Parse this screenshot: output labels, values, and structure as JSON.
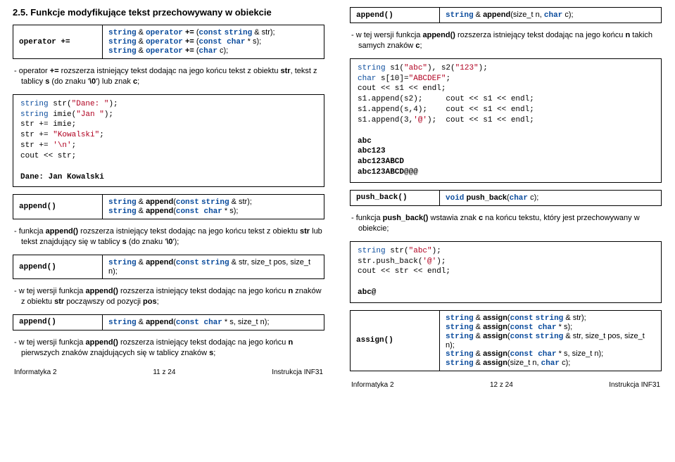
{
  "left": {
    "sec_title": "2.5. Funkcje modyfikujące tekst przechowywany w obiekcie",
    "op_plus_eq": {
      "label": "operator +=",
      "sig1": "string & operator += (const string & str);",
      "sig2": "string & operator += (const char * s);",
      "sig3": "string & operator += (char c);"
    },
    "op_desc": "operator += rozszerza istniejący tekst dodając na jego końcu tekst z obiektu str, tekst z tablicy s (do znaku '\\0') lub znak c;",
    "code1": "string str(\"Dane: \");\nstring imie(\"Jan \");\nstr += imie;\nstr += \"Kowalski\";\nstr += '\\n';\ncout << str;\n\nDane: Jan Kowalski",
    "append1": {
      "label": "append()",
      "sig1": "string & append(const string & str);",
      "sig2": "string & append(const char * s);"
    },
    "append1_desc": "funkcja append() rozszerza istniejący tekst dodając na jego końcu tekst z obiektu str lub tekst znajdujący się w tablicy s (do znaku '\\0');",
    "append2": {
      "label": "append()",
      "sig": "string & append(const string & str, size_t pos, size_t n);"
    },
    "append2_desc": "w tej wersji funkcja append() rozszerza istniejący tekst dodając na jego końcu n znaków z obiektu str począwszy od pozycji pos;",
    "append3": {
      "label": "append()",
      "sig": "string & append(const char * s, size_t n);"
    },
    "append3_desc": "w tej wersji funkcja append() rozszerza istniejący tekst dodając na jego końcu n pierwszych znaków znajdujących się w tablicy znaków s;",
    "footer_l": "Informatyka 2",
    "footer_c": "11 z 24",
    "footer_r": "Instrukcja INF31"
  },
  "right": {
    "append4": {
      "label": "append()",
      "sig": "string & append(size_t n, char c);"
    },
    "append4_desc": "w tej wersji funkcja append() rozszerza istniejący tekst dodając na jego końcu n takich samych znaków c;",
    "code2": "string s1(\"abc\"), s2(\"123\");\nchar s[10]=\"ABCDEF\";\ncout << s1 << endl;\ns1.append(s2);     cout << s1 << endl;\ns1.append(s,4);    cout << s1 << endl;\ns1.append(3,'@');  cout << s1 << endl;\n\nabc\nabc123\nabc123ABCD\nabc123ABCD@@@",
    "pushback": {
      "label": "push_back()",
      "sig": "void push_back(char c);"
    },
    "pushback_desc": "funkcja push_back() wstawia znak c na końcu tekstu, który jest przechowywany w obiekcie;",
    "code3": "string str(\"abc\");\nstr.push_back('@');\ncout << str << endl;\n\nabc@",
    "assign": {
      "label": "assign()",
      "sig1": "string & assign(const string & str);",
      "sig2": "string & assign(const char * s);",
      "sig3": "string & assign(const string & str, size_t pos, size_t n);",
      "sig4": "string & assign(const char * s, size_t n);",
      "sig5": "string & assign(size_t n, char c);"
    },
    "footer_l": "Informatyka 2",
    "footer_c": "12 z 24",
    "footer_r": "Instrukcja INF31"
  }
}
